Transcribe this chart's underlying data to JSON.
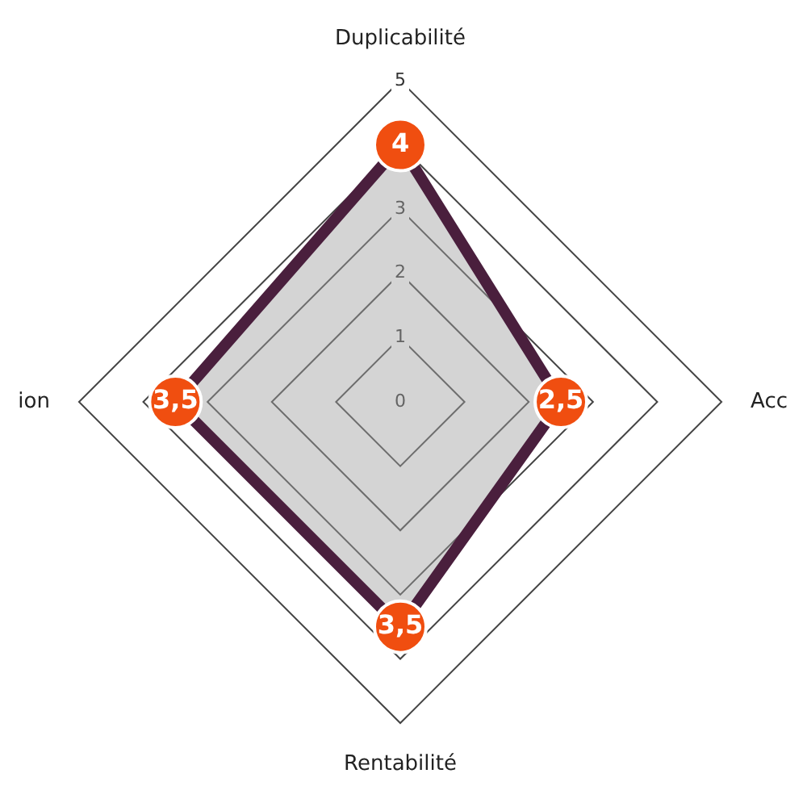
{
  "chart_data": {
    "type": "radar",
    "categories": [
      "Duplicabilité",
      "Acc",
      "Rentabilité",
      "ion"
    ],
    "series": [
      {
        "color": "#4a1f3d",
        "values": [
          4,
          2.5,
          3.5,
          3.5
        ],
        "value_labels": [
          "4",
          "2,5",
          "3,5",
          "3,5"
        ]
      }
    ],
    "ylim": [
      0,
      5
    ],
    "yticks": [
      0,
      1,
      2,
      3,
      4,
      5
    ],
    "grid": true,
    "legend": false,
    "marker": "circle"
  }
}
